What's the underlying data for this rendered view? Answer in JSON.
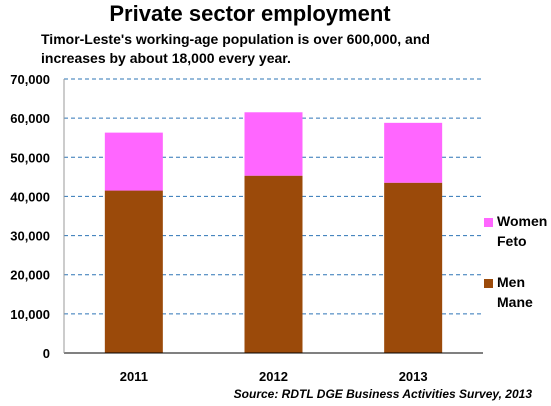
{
  "chart_data": {
    "type": "bar",
    "stacked": true,
    "title": "Private sector employment",
    "subtitle_lines": [
      "Timor-Leste's working-age population is over 600,000, and",
      "increases by about 18,000 every year."
    ],
    "categories": [
      "2011",
      "2012",
      "2013"
    ],
    "series": [
      {
        "name_lines": [
          "Men",
          "Mane"
        ],
        "color": "#9B4A0A",
        "values": [
          41500,
          45300,
          43500
        ]
      },
      {
        "name_lines": [
          "Women",
          "Feto"
        ],
        "color": "#FF66FF",
        "values": [
          14800,
          16200,
          15300
        ]
      }
    ],
    "ylim": [
      0,
      70000
    ],
    "yticks": [
      0,
      10000,
      20000,
      30000,
      40000,
      50000,
      60000,
      70000
    ],
    "ytick_labels": [
      "0",
      "10,000",
      "20,000",
      "30,000",
      "40,000",
      "50,000",
      "60,000",
      "70,000"
    ],
    "grid": true,
    "grid_color": "#2E75B6",
    "legend_position": "right",
    "source": "Source: RDTL DGE Business Activities Survey, 2013"
  }
}
